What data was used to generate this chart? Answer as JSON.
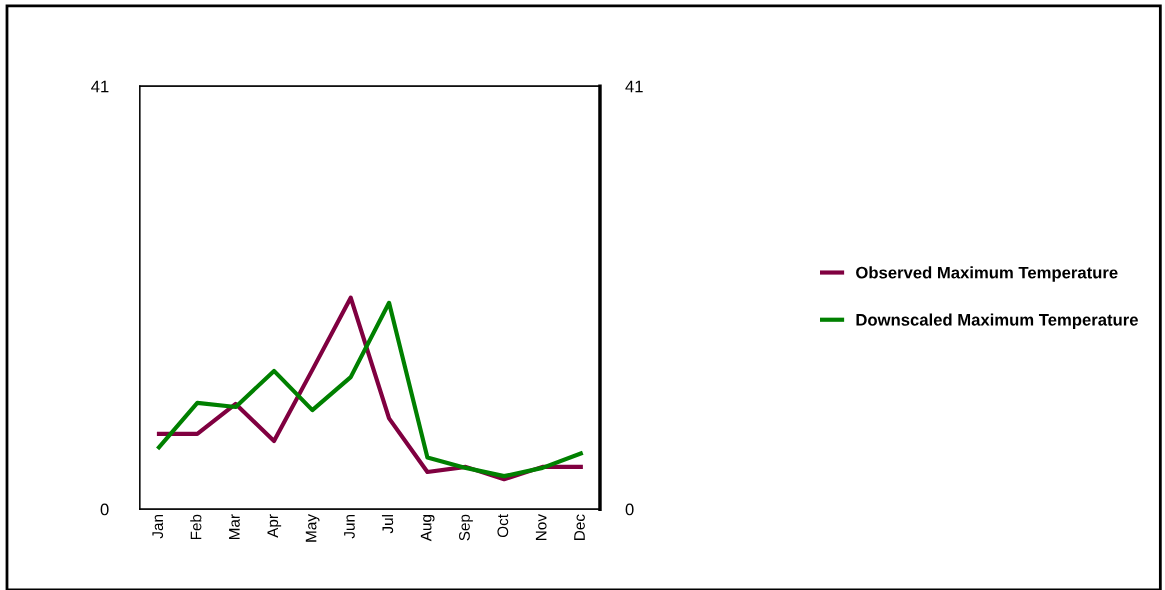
{
  "chart_data": {
    "type": "line",
    "categories": [
      "Jan",
      "Feb",
      "Mar",
      "Apr",
      "May",
      "Jun",
      "Jul",
      "Aug",
      "Sep",
      "Oct",
      "Nov",
      "Dec"
    ],
    "series": [
      {
        "name": "Observed Maximum Temperature",
        "color": "#800040",
        "values": [
          7.3,
          7.3,
          10.2,
          6.6,
          13.5,
          20.5,
          8.8,
          3.6,
          4.1,
          2.9,
          4.1,
          4.1
        ]
      },
      {
        "name": "Downscaled Maximum Temperature",
        "color": "#008000",
        "values": [
          6.0,
          10.3,
          9.9,
          13.4,
          9.6,
          12.8,
          20.0,
          5.0,
          4.0,
          3.2,
          4.0,
          5.4
        ]
      }
    ],
    "ylim": [
      0,
      41
    ],
    "yticks": [
      0,
      41
    ],
    "y2lim": [
      0,
      41
    ],
    "y2ticks": [
      0,
      41
    ],
    "grid": false,
    "legend": "right",
    "marker": "none",
    "line_style": "solid"
  }
}
